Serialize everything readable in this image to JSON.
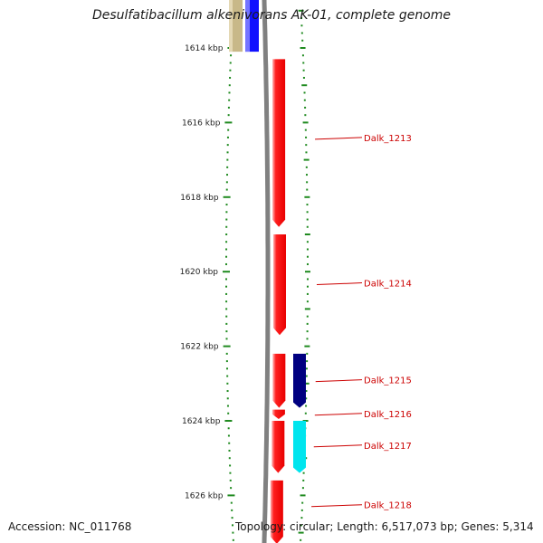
{
  "title": "Desulfatibacillum alkenivorans AK-01, complete genome",
  "footer": {
    "accession": "Accession: NC_011768",
    "topology": "Topology: circular; Length: 6,517,073 bp; Genes: 5,314"
  },
  "axis": {
    "unit": "kbp",
    "range_kbp": [
      1613.0,
      1627.3
    ],
    "major_ticks": [
      {
        "value": 1614,
        "label": "1614 kbp"
      },
      {
        "value": 1616,
        "label": "1616 kbp"
      },
      {
        "value": 1618,
        "label": "1618 kbp"
      },
      {
        "value": 1620,
        "label": "1620 kbp"
      },
      {
        "value": 1622,
        "label": "1622 kbp"
      },
      {
        "value": 1624,
        "label": "1624 kbp"
      },
      {
        "value": 1626,
        "label": "1626 kbp"
      }
    ]
  },
  "colors": {
    "forward_gene": "#ff1a1a",
    "cds_dark": "#000080",
    "cds_cyan": "#00e5ee",
    "rna_blue": "#1010ff",
    "misc_tan": "#c8b888",
    "backbone": "#808080",
    "tick": "#1f8a1f",
    "label": "#cc0000"
  },
  "features": [
    {
      "id": "tan-feature",
      "start": 1613.0,
      "end": 1614.1,
      "track": "tan",
      "color": "#c8b888"
    },
    {
      "id": "blue-feature",
      "start": 1613.0,
      "end": 1614.1,
      "track": "blue",
      "color": "#1010ff"
    },
    {
      "id": "dalk-1213",
      "name": "Dalk_1213",
      "start": 1614.3,
      "end": 1618.8,
      "track": "forward",
      "color": "#ff1a1a",
      "label_at": 1616.4
    },
    {
      "id": "dalk-1214",
      "name": "Dalk_1214",
      "start": 1619.0,
      "end": 1621.7,
      "track": "forward",
      "color": "#ff1a1a",
      "label_at": 1620.3
    },
    {
      "id": "dalk-1215",
      "name": "Dalk_1215",
      "start": 1622.2,
      "end": 1623.65,
      "track": "forward",
      "color": "#ff1a1a",
      "label_at": 1622.9
    },
    {
      "id": "dalk-1215-cds",
      "start": 1622.2,
      "end": 1623.65,
      "track": "cds",
      "color": "#000080"
    },
    {
      "id": "dalk-1216",
      "name": "Dalk_1216",
      "start": 1623.7,
      "end": 1623.95,
      "track": "forward",
      "color": "#ff1a1a",
      "label_at": 1623.8
    },
    {
      "id": "dalk-1217",
      "name": "Dalk_1217",
      "start": 1624.0,
      "end": 1625.4,
      "track": "forward",
      "color": "#ff1a1a",
      "label_at": 1624.65
    },
    {
      "id": "dalk-1217-cds",
      "start": 1624.0,
      "end": 1625.4,
      "track": "cds",
      "color": "#00e5ee"
    },
    {
      "id": "dalk-1218",
      "name": "Dalk_1218",
      "start": 1625.6,
      "end": 1627.3,
      "track": "forward",
      "color": "#ff1a1a",
      "label_at": 1626.25
    }
  ]
}
